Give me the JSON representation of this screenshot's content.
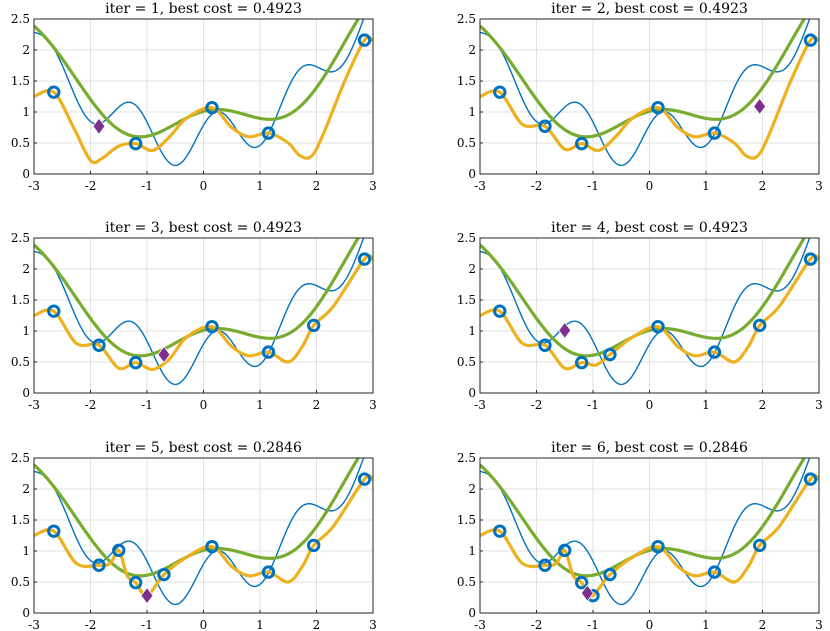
{
  "chart_data": {
    "type": "line",
    "xlim": [
      -3,
      3
    ],
    "ylim": [
      0,
      2.5
    ],
    "xticks": [
      "-3",
      "-2",
      "-1",
      "0",
      "1",
      "2",
      "3"
    ],
    "yticks": [
      "0",
      "0.5",
      "1",
      "1.5",
      "2",
      "2.5"
    ],
    "grid": true,
    "colors": {
      "true_function": "#0072BD",
      "surrogate": "#77AC30",
      "acquisition": "#EDB120",
      "samples": "#0072BD",
      "next_point": "#7E2F8E"
    },
    "panels": [
      {
        "title": "iter = 1, best cost = 0.4923",
        "samples": [
          [
            -2.65,
            1.32
          ],
          [
            -1.2,
            0.49
          ],
          [
            0.15,
            1.07
          ],
          [
            1.15,
            0.66
          ],
          [
            2.85,
            2.16
          ]
        ],
        "next_point": [
          -1.85,
          0.77
        ],
        "acquisition": [
          [
            -3,
            1.25
          ],
          [
            -2.65,
            1.32
          ],
          [
            -2.3,
            0.75
          ],
          [
            -2.0,
            0.22
          ],
          [
            -1.8,
            0.25
          ],
          [
            -1.5,
            0.45
          ],
          [
            -1.2,
            0.49
          ],
          [
            -0.9,
            0.38
          ],
          [
            -0.6,
            0.6
          ],
          [
            -0.3,
            0.9
          ],
          [
            0.15,
            1.07
          ],
          [
            0.5,
            0.75
          ],
          [
            0.8,
            0.6
          ],
          [
            1.15,
            0.66
          ],
          [
            1.5,
            0.5
          ],
          [
            1.7,
            0.3
          ],
          [
            1.9,
            0.28
          ],
          [
            2.1,
            0.6
          ],
          [
            2.5,
            1.5
          ],
          [
            2.85,
            2.16
          ],
          [
            3,
            2.15
          ]
        ]
      },
      {
        "title": "iter = 2, best cost = 0.4923",
        "samples": [
          [
            -2.65,
            1.32
          ],
          [
            -1.85,
            0.77
          ],
          [
            -1.2,
            0.49
          ],
          [
            0.15,
            1.07
          ],
          [
            1.15,
            0.66
          ],
          [
            2.85,
            2.16
          ]
        ],
        "next_point": [
          1.95,
          1.09
        ],
        "acquisition": [
          [
            -3,
            1.25
          ],
          [
            -2.65,
            1.32
          ],
          [
            -2.25,
            0.8
          ],
          [
            -1.85,
            0.77
          ],
          [
            -1.5,
            0.4
          ],
          [
            -1.2,
            0.49
          ],
          [
            -0.9,
            0.38
          ],
          [
            -0.6,
            0.6
          ],
          [
            -0.3,
            0.9
          ],
          [
            0.15,
            1.07
          ],
          [
            0.5,
            0.75
          ],
          [
            0.8,
            0.6
          ],
          [
            1.15,
            0.66
          ],
          [
            1.5,
            0.5
          ],
          [
            1.7,
            0.3
          ],
          [
            1.9,
            0.28
          ],
          [
            2.1,
            0.6
          ],
          [
            2.5,
            1.5
          ],
          [
            2.85,
            2.16
          ],
          [
            3,
            2.15
          ]
        ]
      },
      {
        "title": "iter = 3, best cost = 0.4923",
        "samples": [
          [
            -2.65,
            1.32
          ],
          [
            -1.85,
            0.77
          ],
          [
            -1.2,
            0.49
          ],
          [
            0.15,
            1.07
          ],
          [
            1.15,
            0.66
          ],
          [
            1.95,
            1.09
          ],
          [
            2.85,
            2.16
          ]
        ],
        "next_point": [
          -0.7,
          0.62
        ],
        "acquisition": [
          [
            -3,
            1.25
          ],
          [
            -2.65,
            1.32
          ],
          [
            -2.25,
            0.8
          ],
          [
            -1.85,
            0.77
          ],
          [
            -1.5,
            0.4
          ],
          [
            -1.2,
            0.49
          ],
          [
            -0.9,
            0.38
          ],
          [
            -0.6,
            0.55
          ],
          [
            -0.3,
            0.9
          ],
          [
            0.15,
            1.07
          ],
          [
            0.5,
            0.75
          ],
          [
            0.8,
            0.6
          ],
          [
            1.15,
            0.66
          ],
          [
            1.5,
            0.5
          ],
          [
            1.75,
            0.75
          ],
          [
            1.95,
            1.09
          ],
          [
            2.3,
            1.4
          ],
          [
            2.85,
            2.16
          ],
          [
            3,
            2.15
          ]
        ]
      },
      {
        "title": "iter = 4, best cost = 0.4923",
        "samples": [
          [
            -2.65,
            1.32
          ],
          [
            -1.85,
            0.77
          ],
          [
            -1.2,
            0.49
          ],
          [
            -0.7,
            0.62
          ],
          [
            0.15,
            1.07
          ],
          [
            1.15,
            0.66
          ],
          [
            1.95,
            1.09
          ],
          [
            2.85,
            2.16
          ]
        ],
        "next_point": [
          -1.5,
          1.01
        ],
        "acquisition": [
          [
            -3,
            1.25
          ],
          [
            -2.65,
            1.32
          ],
          [
            -2.25,
            0.8
          ],
          [
            -1.85,
            0.77
          ],
          [
            -1.5,
            0.4
          ],
          [
            -1.2,
            0.49
          ],
          [
            -0.95,
            0.45
          ],
          [
            -0.7,
            0.62
          ],
          [
            -0.3,
            0.9
          ],
          [
            0.15,
            1.07
          ],
          [
            0.5,
            0.75
          ],
          [
            0.8,
            0.6
          ],
          [
            1.15,
            0.66
          ],
          [
            1.5,
            0.5
          ],
          [
            1.75,
            0.75
          ],
          [
            1.95,
            1.09
          ],
          [
            2.3,
            1.4
          ],
          [
            2.85,
            2.16
          ],
          [
            3,
            2.15
          ]
        ]
      },
      {
        "title": "iter = 5, best cost = 0.2846",
        "samples": [
          [
            -2.65,
            1.32
          ],
          [
            -1.85,
            0.77
          ],
          [
            -1.5,
            1.01
          ],
          [
            -1.2,
            0.49
          ],
          [
            -0.7,
            0.62
          ],
          [
            0.15,
            1.07
          ],
          [
            1.15,
            0.66
          ],
          [
            1.95,
            1.09
          ],
          [
            2.85,
            2.16
          ]
        ],
        "next_point": [
          -1.0,
          0.28
        ],
        "acquisition": [
          [
            -3,
            1.25
          ],
          [
            -2.65,
            1.32
          ],
          [
            -2.25,
            0.8
          ],
          [
            -1.85,
            0.77
          ],
          [
            -1.65,
            0.8
          ],
          [
            -1.5,
            1.01
          ],
          [
            -1.35,
            0.6
          ],
          [
            -1.2,
            0.49
          ],
          [
            -1.0,
            0.28
          ],
          [
            -0.7,
            0.62
          ],
          [
            -0.3,
            0.9
          ],
          [
            0.15,
            1.07
          ],
          [
            0.5,
            0.75
          ],
          [
            0.8,
            0.6
          ],
          [
            1.15,
            0.66
          ],
          [
            1.5,
            0.5
          ],
          [
            1.75,
            0.75
          ],
          [
            1.95,
            1.09
          ],
          [
            2.3,
            1.4
          ],
          [
            2.85,
            2.16
          ],
          [
            3,
            2.15
          ]
        ]
      },
      {
        "title": "iter = 6, best cost = 0.2846",
        "samples": [
          [
            -2.65,
            1.32
          ],
          [
            -1.85,
            0.77
          ],
          [
            -1.5,
            1.01
          ],
          [
            -1.2,
            0.49
          ],
          [
            -1.0,
            0.28
          ],
          [
            -0.7,
            0.62
          ],
          [
            0.15,
            1.07
          ],
          [
            1.15,
            0.66
          ],
          [
            1.95,
            1.09
          ],
          [
            2.85,
            2.16
          ]
        ],
        "next_point": [
          -1.1,
          0.32
        ],
        "acquisition": [
          [
            -3,
            1.25
          ],
          [
            -2.65,
            1.32
          ],
          [
            -2.25,
            0.8
          ],
          [
            -1.85,
            0.77
          ],
          [
            -1.65,
            0.8
          ],
          [
            -1.5,
            1.01
          ],
          [
            -1.35,
            0.6
          ],
          [
            -1.2,
            0.49
          ],
          [
            -1.1,
            0.3
          ],
          [
            -1.0,
            0.28
          ],
          [
            -0.85,
            0.45
          ],
          [
            -0.7,
            0.62
          ],
          [
            -0.3,
            0.9
          ],
          [
            0.15,
            1.07
          ],
          [
            0.5,
            0.75
          ],
          [
            0.8,
            0.6
          ],
          [
            1.15,
            0.66
          ],
          [
            1.5,
            0.5
          ],
          [
            1.75,
            0.75
          ],
          [
            1.95,
            1.09
          ],
          [
            2.3,
            1.4
          ],
          [
            2.85,
            2.16
          ],
          [
            3,
            2.15
          ]
        ]
      }
    ]
  }
}
